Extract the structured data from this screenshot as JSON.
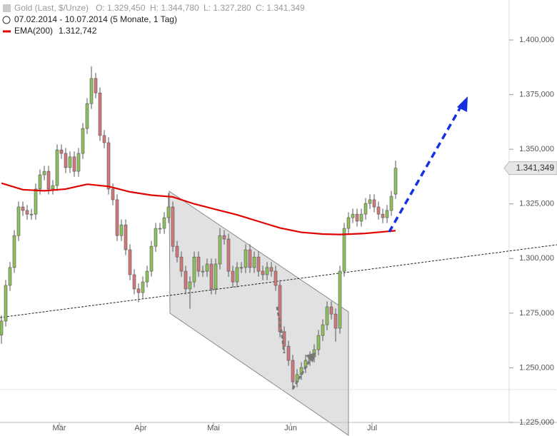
{
  "chart_data": {
    "type": "candlestick",
    "title": "Gold (Last, $/Unze)",
    "ohlc_labels": [
      "O: 1.329,450",
      "H: 1.344,780",
      "L: 1.327,280",
      "C: 1.341,349"
    ],
    "date_range": "07.02.2014 - 10.07.2014 (5 Monate, 1 Tag)",
    "up_color": "#8fbf5f",
    "down_color": "#cf7a7a",
    "xlim": [
      -0.333,
      118.5
    ],
    "xticks": [
      {
        "value": 13.5,
        "label": "Mär"
      },
      {
        "value": 32.5,
        "label": "Apr"
      },
      {
        "value": 49.5,
        "label": "Mai"
      },
      {
        "value": 67.5,
        "label": "Jun"
      },
      {
        "value": 86.5,
        "label": "Jul"
      }
    ],
    "ylim": [
      1225,
      1418.3
    ],
    "yticks": [
      {
        "value": 1225,
        "label": "1.225,000"
      },
      {
        "value": 1250,
        "label": "1.250,000"
      },
      {
        "value": 1275,
        "label": "1.275,000"
      },
      {
        "value": 1300,
        "label": "1.300,000"
      },
      {
        "value": 1325,
        "label": "1.325,000"
      },
      {
        "value": 1350,
        "label": "1.350,000"
      },
      {
        "value": 1375,
        "label": "1.375,000"
      },
      {
        "value": 1400,
        "label": "1.400,000"
      }
    ],
    "last_price": {
      "value": 1341.349,
      "label": "1.341,349"
    },
    "open": [
      1265.0,
      1271.4,
      1287.7,
      1295.9,
      1310.5,
      1323.6,
      1322.0,
      1320.3,
      1320.3,
      1331.8,
      1338.3,
      1339.9,
      1331.8,
      1333.4,
      1349.7,
      1348.1,
      1341.6,
      1346.5,
      1339.9,
      1348.1,
      1359.5,
      1370.9,
      1382.4,
      1375.8,
      1356.3,
      1353.0,
      1331.8,
      1326.9,
      1310.5,
      1315.4,
      1304.0,
      1292.6,
      1286.1,
      1284.4,
      1289.3,
      1294.2,
      1305.6,
      1313.8,
      1313.8,
      1318.7,
      1323.6,
      1305.6,
      1300.7,
      1294.2,
      1286.1,
      1289.3,
      1300.7,
      1294.2,
      1294.2,
      1297.5,
      1286.1,
      1297.5,
      1310.5,
      1308.9,
      1294.2,
      1289.3,
      1295.9,
      1295.9,
      1304.0,
      1295.9,
      1300.7,
      1294.2,
      1292.6,
      1295.9,
      1294.2,
      1287.7,
      1266.5,
      1259.9,
      1253.4,
      1243.6,
      1246.9,
      1250.1,
      1253.4,
      1255.0,
      1258.3,
      1264.8,
      1269.7,
      1277.9,
      1274.6,
      1268.1,
      1294.2,
      1313.8,
      1318.7,
      1320.3,
      1317.1,
      1320.3,
      1325.2,
      1326.9,
      1323.6,
      1320.3,
      1318.7,
      1322.0,
      1329.45
    ],
    "high": [
      1274.0,
      1290.2,
      1298.4,
      1313.0,
      1326.1,
      1326.1,
      1324.5,
      1322.8,
      1334.3,
      1340.8,
      1342.4,
      1342.4,
      1335.9,
      1352.2,
      1352.2,
      1350.6,
      1349.0,
      1349.0,
      1350.6,
      1362.0,
      1373.4,
      1388.0,
      1384.9,
      1378.3,
      1358.8,
      1355.5,
      1334.3,
      1329.4,
      1317.9,
      1317.9,
      1306.5,
      1295.1,
      1288.6,
      1291.8,
      1296.7,
      1308.1,
      1316.3,
      1316.3,
      1321.2,
      1330.0,
      1326.1,
      1308.1,
      1303.2,
      1296.7,
      1291.8,
      1303.2,
      1303.2,
      1296.7,
      1300.0,
      1300.0,
      1300.0,
      1314.0,
      1313.0,
      1311.4,
      1296.7,
      1298.4,
      1298.4,
      1306.5,
      1306.5,
      1303.2,
      1303.2,
      1296.7,
      1298.4,
      1298.4,
      1296.7,
      1290.2,
      1269.0,
      1262.4,
      1255.9,
      1249.4,
      1252.6,
      1255.9,
      1257.5,
      1260.8,
      1267.3,
      1272.2,
      1280.4,
      1280.4,
      1277.1,
      1296.7,
      1316.3,
      1321.2,
      1322.8,
      1322.8,
      1322.8,
      1327.7,
      1329.4,
      1329.4,
      1326.1,
      1322.8,
      1324.5,
      1331.0,
      1344.78
    ],
    "low": [
      1261.0,
      1268.9,
      1285.2,
      1293.4,
      1308.0,
      1319.5,
      1317.8,
      1317.8,
      1317.8,
      1329.3,
      1335.8,
      1329.3,
      1329.3,
      1330.9,
      1345.6,
      1339.1,
      1339.1,
      1337.4,
      1337.4,
      1345.6,
      1357.0,
      1368.4,
      1373.3,
      1353.8,
      1350.5,
      1329.3,
      1324.4,
      1308.0,
      1308.0,
      1301.5,
      1290.1,
      1283.6,
      1280.0,
      1281.9,
      1286.8,
      1291.7,
      1303.1,
      1311.3,
      1311.3,
      1316.2,
      1303.1,
      1298.2,
      1291.7,
      1283.6,
      1277.0,
      1286.8,
      1291.7,
      1291.7,
      1291.7,
      1283.6,
      1283.6,
      1295.0,
      1306.4,
      1291.7,
      1286.8,
      1286.8,
      1293.4,
      1293.4,
      1293.4,
      1293.4,
      1291.7,
      1290.1,
      1290.1,
      1291.7,
      1285.2,
      1264.0,
      1257.4,
      1250.9,
      1240.0,
      1241.1,
      1244.4,
      1247.6,
      1250.9,
      1252.5,
      1255.8,
      1262.3,
      1267.2,
      1272.1,
      1262.0,
      1265.6,
      1291.7,
      1311.3,
      1316.2,
      1314.6,
      1314.6,
      1317.8,
      1322.7,
      1321.1,
      1317.8,
      1316.2,
      1316.2,
      1319.5,
      1327.28
    ],
    "close": [
      1271.4,
      1287.7,
      1295.9,
      1310.5,
      1323.6,
      1322.0,
      1320.3,
      1320.3,
      1331.8,
      1338.3,
      1339.9,
      1331.8,
      1333.4,
      1349.7,
      1348.1,
      1341.6,
      1346.5,
      1339.9,
      1348.1,
      1359.5,
      1370.9,
      1382.4,
      1375.8,
      1356.3,
      1353.0,
      1331.8,
      1326.9,
      1310.5,
      1315.4,
      1304.0,
      1292.6,
      1286.1,
      1284.4,
      1289.3,
      1294.2,
      1305.6,
      1313.8,
      1313.8,
      1318.7,
      1323.6,
      1305.6,
      1300.7,
      1294.2,
      1286.1,
      1289.3,
      1300.7,
      1294.2,
      1294.2,
      1297.5,
      1286.1,
      1297.5,
      1310.5,
      1308.9,
      1294.2,
      1289.3,
      1295.9,
      1295.9,
      1304.0,
      1295.9,
      1300.7,
      1294.2,
      1292.6,
      1295.9,
      1294.2,
      1287.7,
      1266.5,
      1259.9,
      1253.4,
      1243.6,
      1246.9,
      1250.1,
      1253.4,
      1255.0,
      1258.3,
      1264.8,
      1269.7,
      1277.9,
      1274.6,
      1268.1,
      1294.2,
      1313.8,
      1318.7,
      1320.3,
      1317.1,
      1320.3,
      1325.2,
      1326.9,
      1323.6,
      1320.3,
      1318.7,
      1322.0,
      1328.5,
      1341.349
    ],
    "ema": {
      "name": "EMA(200)",
      "value_label": "1.312,742",
      "color": "#e00000",
      "x": [
        0,
        5,
        10,
        15,
        20,
        25,
        30,
        35,
        40,
        45,
        50,
        55,
        60,
        65,
        70,
        75,
        79,
        85,
        92
      ],
      "values": [
        1334.5,
        1331.5,
        1331.0,
        1331.8,
        1334.0,
        1333.0,
        1330.5,
        1329.0,
        1328.2,
        1325.0,
        1322.5,
        1320.0,
        1317.0,
        1314.0,
        1312.0,
        1311.2,
        1311.0,
        1311.5,
        1312.742
      ]
    }
  }
}
